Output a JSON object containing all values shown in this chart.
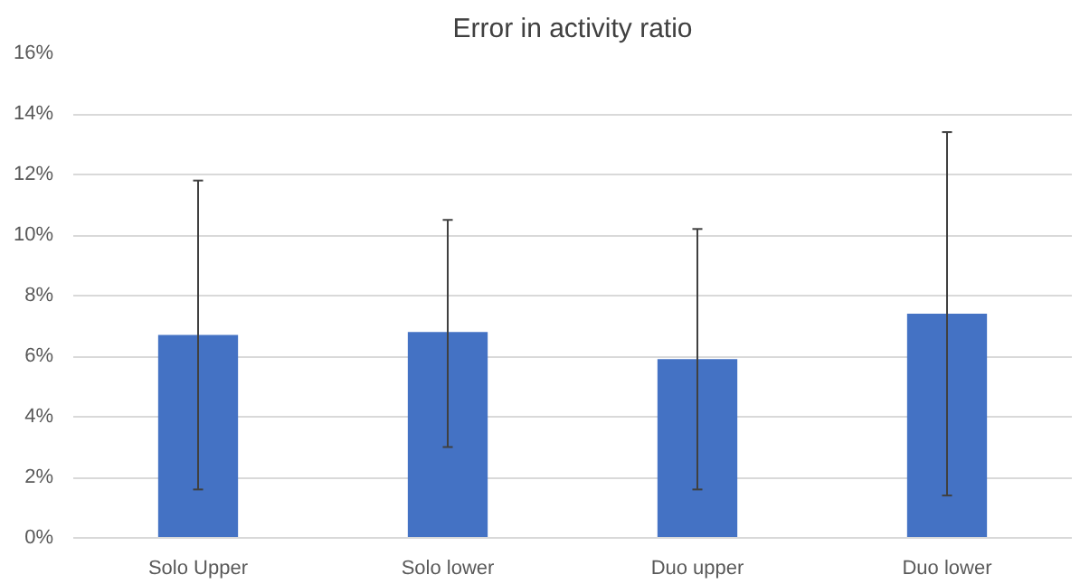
{
  "chart_data": {
    "type": "bar",
    "title": "Error in activity ratio",
    "categories": [
      "Solo Upper",
      "Solo lower",
      "Duo upper",
      "Duo lower"
    ],
    "values": [
      6.7,
      6.8,
      5.9,
      7.4
    ],
    "errors": [
      [
        1.6,
        11.8
      ],
      [
        3.0,
        10.5
      ],
      [
        1.6,
        10.2
      ],
      [
        1.4,
        13.4
      ]
    ],
    "color": "#4472c4",
    "ylim": [
      0,
      16
    ],
    "yticks": [
      {
        "value": 0,
        "label": "0%"
      },
      {
        "value": 2,
        "label": "2%"
      },
      {
        "value": 4,
        "label": "4%"
      },
      {
        "value": 6,
        "label": "6%"
      },
      {
        "value": 8,
        "label": "8%"
      },
      {
        "value": 10,
        "label": "10%"
      },
      {
        "value": 12,
        "label": "12%"
      },
      {
        "value": 14,
        "label": "14%"
      },
      {
        "value": 16,
        "label": "16%"
      }
    ],
    "grid": "y"
  }
}
